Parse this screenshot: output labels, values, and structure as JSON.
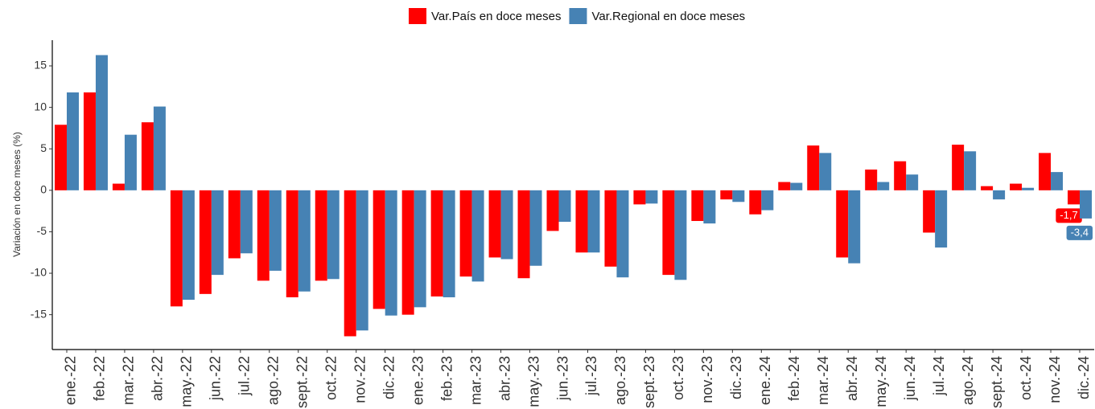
{
  "chart_data": {
    "type": "bar",
    "y_label": "Variación en doce meses (%)",
    "categories": [
      "ene.-22",
      "feb.-22",
      "mar.-22",
      "abr.-22",
      "may.-22",
      "jun.-22",
      "jul.-22",
      "ago.-22",
      "sept.-22",
      "oct.-22",
      "nov.-22",
      "dic.-22",
      "ene.-23",
      "feb.-23",
      "mar.-23",
      "abr.-23",
      "may.-23",
      "jun.-23",
      "jul.-23",
      "ago.-23",
      "sept.-23",
      "oct.-23",
      "nov.-23",
      "dic.-23",
      "ene.-24",
      "feb.-24",
      "mar.-24",
      "abr.-24",
      "may.-24",
      "jun.-24",
      "jul.-24",
      "ago.-24",
      "sept.-24",
      "oct.-24",
      "nov.-24",
      "dic.-24"
    ],
    "series": [
      {
        "name": "Var.País en doce meses",
        "color": "#ff0000",
        "values": [
          7.9,
          11.8,
          0.8,
          8.2,
          -14.0,
          -12.5,
          -8.2,
          -10.9,
          -12.9,
          -10.9,
          -17.6,
          -14.3,
          -15.0,
          -12.8,
          -10.4,
          -8.1,
          -10.6,
          -4.9,
          -7.5,
          -9.2,
          -1.7,
          -10.2,
          -3.7,
          -1.1,
          -2.9,
          1.0,
          5.4,
          -8.1,
          2.5,
          3.5,
          -5.1,
          5.5,
          0.5,
          0.8,
          4.5,
          -1.7
        ],
        "value_labels": [
          null,
          null,
          null,
          null,
          null,
          null,
          null,
          null,
          null,
          null,
          null,
          null,
          null,
          null,
          null,
          null,
          null,
          null,
          null,
          null,
          null,
          null,
          null,
          null,
          null,
          null,
          null,
          null,
          null,
          null,
          null,
          null,
          null,
          null,
          null,
          "-1,7"
        ]
      },
      {
        "name": "Var.Regional en doce meses",
        "color": "#4682b4",
        "values": [
          11.8,
          16.3,
          6.7,
          10.1,
          -13.2,
          -10.2,
          -7.6,
          -9.7,
          -12.2,
          -10.7,
          -16.9,
          -15.1,
          -14.1,
          -12.9,
          -11.0,
          -8.3,
          -9.1,
          -3.8,
          -7.5,
          -10.5,
          -1.6,
          -10.8,
          -4.0,
          -1.4,
          -2.4,
          0.9,
          4.5,
          -8.8,
          1.0,
          1.9,
          -6.9,
          4.7,
          -1.1,
          0.3,
          2.2,
          -3.4
        ],
        "value_labels": [
          null,
          null,
          null,
          null,
          null,
          null,
          null,
          null,
          null,
          null,
          null,
          null,
          null,
          null,
          null,
          null,
          null,
          null,
          null,
          null,
          null,
          null,
          null,
          null,
          null,
          null,
          null,
          null,
          null,
          null,
          null,
          null,
          null,
          null,
          null,
          "-3,4"
        ]
      }
    ],
    "ylim": [
      -19.2,
      18.1
    ],
    "yticks": [
      -15,
      -10,
      -5,
      0,
      5,
      10,
      15
    ],
    "legend": "top"
  }
}
